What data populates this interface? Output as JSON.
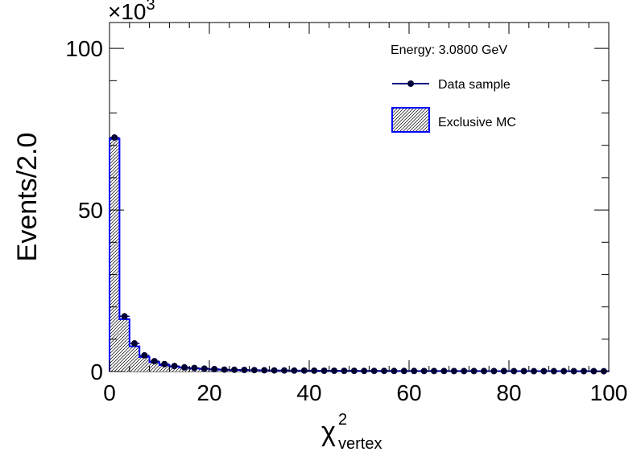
{
  "chart_data": {
    "type": "histogram",
    "x_axis": {
      "label_main": "χ",
      "label_superscript": "2",
      "label_subscript": "vertex",
      "range": [
        0,
        100
      ],
      "major_ticks": [
        0,
        20,
        40,
        60,
        80,
        100
      ],
      "tick_labels": [
        "0",
        "20",
        "40",
        "60",
        "80",
        "100"
      ],
      "bin_width": 2
    },
    "y_axis": {
      "label": "Events/2.0",
      "range": [
        0,
        108
      ],
      "major_ticks": [
        0,
        50,
        100
      ],
      "tick_labels": [
        "0",
        "50",
        "100"
      ],
      "multiplier_base": "×10",
      "multiplier_exponent": "3"
    },
    "legend": {
      "title": "Energy: 3.0800 GeV",
      "position": "top-right",
      "entries": [
        "Data sample",
        "Exclusive MC"
      ]
    },
    "colors": {
      "data": "#000033",
      "data_line": "#000080",
      "mc": "#0000ff"
    },
    "series": [
      {
        "name": "Data sample",
        "style": "points",
        "x": [
          1,
          3,
          5,
          7,
          9,
          11,
          13,
          15,
          17,
          19,
          21,
          23,
          25,
          27,
          29,
          31,
          33,
          35,
          37,
          39,
          41,
          43,
          45,
          47,
          49,
          51,
          53,
          55,
          57,
          59,
          61,
          63,
          65,
          67,
          69,
          71,
          73,
          75,
          77,
          79,
          81,
          83,
          85,
          87,
          89,
          91,
          93,
          95,
          97,
          99
        ],
        "values": [
          72.4,
          17.1,
          8.7,
          5.0,
          3.2,
          2.3,
          1.7,
          1.3,
          1.1,
          0.9,
          0.75,
          0.6,
          0.55,
          0.5,
          0.45,
          0.4,
          0.35,
          0.33,
          0.3,
          0.3,
          0.28,
          0.25,
          0.25,
          0.22,
          0.22,
          0.2,
          0.2,
          0.2,
          0.18,
          0.18,
          0.18,
          0.17,
          0.17,
          0.16,
          0.15,
          0.15,
          0.15,
          0.15,
          0.14,
          0.14,
          0.13,
          0.13,
          0.12,
          0.12,
          0.12,
          0.12,
          0.11,
          0.11,
          0.11,
          0.1
        ]
      },
      {
        "name": "Exclusive MC",
        "style": "hatched-histogram",
        "x": [
          1,
          3,
          5,
          7,
          9,
          11,
          13,
          15,
          17,
          19,
          21,
          23,
          25,
          27,
          29,
          31,
          33,
          35,
          37,
          39,
          41,
          43,
          45,
          47,
          49,
          51,
          53,
          55,
          57,
          59,
          61,
          63,
          65,
          67,
          69,
          71,
          73,
          75,
          77,
          79,
          81,
          83,
          85,
          87,
          89,
          91,
          93,
          95,
          97,
          99
        ],
        "values": [
          72.0,
          16.2,
          7.8,
          4.5,
          2.9,
          2.0,
          1.5,
          1.2,
          0.95,
          0.8,
          0.65,
          0.55,
          0.5,
          0.45,
          0.4,
          0.35,
          0.32,
          0.3,
          0.28,
          0.27,
          0.25,
          0.23,
          0.22,
          0.2,
          0.2,
          0.19,
          0.18,
          0.18,
          0.17,
          0.17,
          0.16,
          0.16,
          0.15,
          0.15,
          0.14,
          0.14,
          0.14,
          0.13,
          0.13,
          0.13,
          0.12,
          0.12,
          0.12,
          0.11,
          0.11,
          0.11,
          0.1,
          0.1,
          0.1,
          0.1
        ]
      }
    ]
  }
}
